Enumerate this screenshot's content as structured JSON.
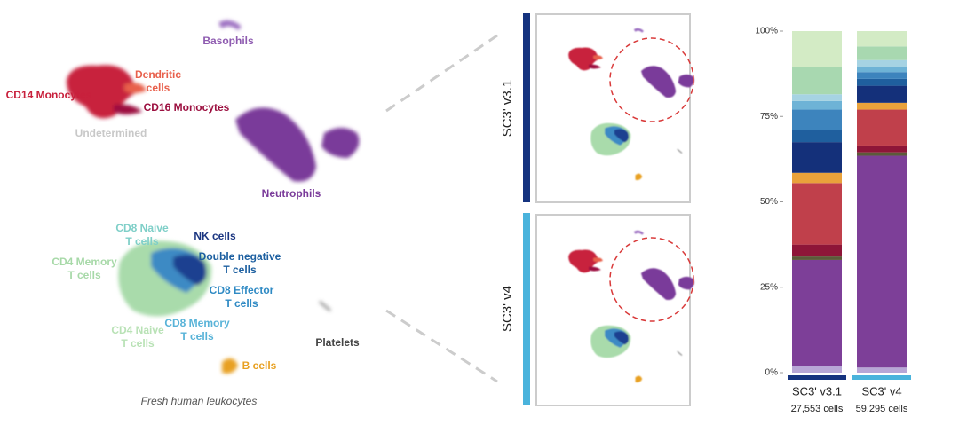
{
  "chart_data": {
    "type": "stacked-bar",
    "categories": [
      "SC3' v3.1",
      "SC3' v4"
    ],
    "cell_counts": [
      "27,553 cells",
      "59,295 cells"
    ],
    "category_colors": [
      "#15337f",
      "#4ab3dc"
    ],
    "ylim": [
      0,
      100
    ],
    "yticks": [
      {
        "value": 0,
        "label": "0%"
      },
      {
        "value": 25,
        "label": "25%"
      },
      {
        "value": 50,
        "label": "50%"
      },
      {
        "value": 75,
        "label": "75%"
      },
      {
        "value": 100,
        "label": "100%"
      }
    ],
    "series": [
      {
        "color": "#b7a6d6",
        "values": [
          2,
          1.5
        ]
      },
      {
        "color": "#7d3f98",
        "values": [
          31,
          62
        ]
      },
      {
        "color": "#5c5a3a",
        "values": [
          1,
          1
        ]
      },
      {
        "color": "#8e1538",
        "values": [
          3.5,
          2
        ]
      },
      {
        "color": "#c0404b",
        "values": [
          18,
          10.5
        ]
      },
      {
        "color": "#e9a23b",
        "values": [
          3,
          2
        ]
      },
      {
        "color": "#14307a",
        "values": [
          9,
          5
        ]
      },
      {
        "color": "#1f5f9e",
        "values": [
          3.5,
          2
        ]
      },
      {
        "color": "#3d84bd",
        "values": [
          6,
          2
        ]
      },
      {
        "color": "#6eb3d6",
        "values": [
          2.5,
          1.5
        ]
      },
      {
        "color": "#a6d3e3",
        "values": [
          2,
          2
        ]
      },
      {
        "color": "#a8d8b0",
        "values": [
          8,
          4
        ]
      },
      {
        "color": "#d3ebc5",
        "values": [
          10.5,
          4.5
        ]
      }
    ]
  },
  "umap_labels": [
    [
      "Basophils"
    ],
    [
      "Dendritic",
      "cells"
    ],
    [
      "CD14 Monocytes"
    ],
    [
      "CD16 Monocytes"
    ],
    [
      "Undetermined"
    ],
    [
      "Neutrophils"
    ],
    [
      "CD8 Naive",
      "T cells"
    ],
    [
      "NK cells"
    ],
    [
      "CD4 Memory",
      "T cells"
    ],
    [
      "Double negative",
      "T cells"
    ],
    [
      "CD8 Effector",
      "T cells"
    ],
    [
      "CD8 Memory",
      "T cells"
    ],
    [
      "CD4 Naive",
      "T cells"
    ],
    [
      "Platelets"
    ],
    [
      "B cells"
    ]
  ],
  "caption": "Fresh human leukocytes",
  "panels": [
    "SC3' v3.1",
    "SC3' v4"
  ]
}
